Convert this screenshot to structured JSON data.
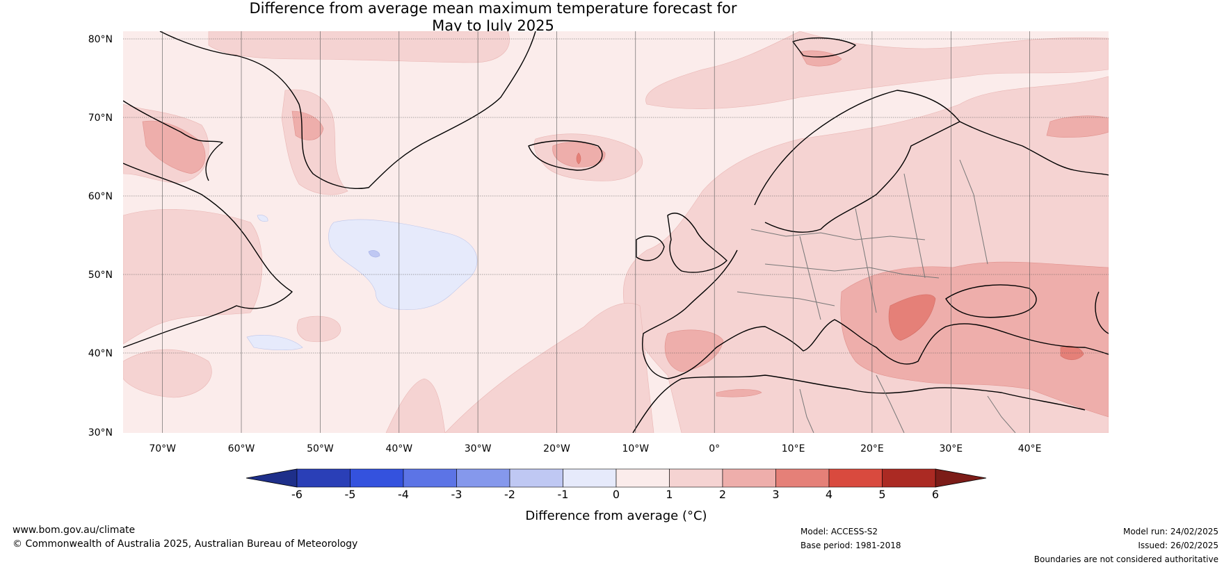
{
  "title": {
    "line1": "Difference from average mean maximum temperature forecast for",
    "line2": "May to July 2025"
  },
  "map": {
    "lat_labels": [
      "80°N",
      "70°N",
      "60°N",
      "50°N",
      "40°N",
      "30°N"
    ],
    "lon_labels": [
      "70°W",
      "60°W",
      "50°W",
      "40°W",
      "30°W",
      "20°W",
      "10°W",
      "0°",
      "10°E",
      "20°E",
      "30°E",
      "40°E"
    ],
    "lat_range": [
      30,
      81
    ],
    "lon_range": [
      -75,
      50
    ],
    "background_anomaly_class": "0 to 1"
  },
  "colorbar": {
    "title": "Difference from average (°C)",
    "ticks": [
      "-6",
      "-5",
      "-4",
      "-3",
      "-2",
      "-1",
      "0",
      "1",
      "2",
      "3",
      "4",
      "5",
      "6"
    ],
    "colors": [
      "#1e2f8a",
      "#2a3fb7",
      "#3452de",
      "#5c74e6",
      "#8598ec",
      "#bfc8f3",
      "#e6eafb",
      "#fbeceb",
      "#f5d3d2",
      "#eeaeab",
      "#e58078",
      "#d94a3e",
      "#ab2a23",
      "#7c1c18"
    ]
  },
  "footer": {
    "website": "www.bom.gov.au/climate",
    "copyright": "© Commonwealth of Australia 2025, Australian Bureau of Meteorology",
    "model": "Model: ACCESS-S2",
    "base_period": "Base period: 1981-2018",
    "model_run": "Model run: 24/02/2025",
    "issued": "Issued: 26/02/2025",
    "disclaimer": "Boundaries are not considered authoritative"
  }
}
